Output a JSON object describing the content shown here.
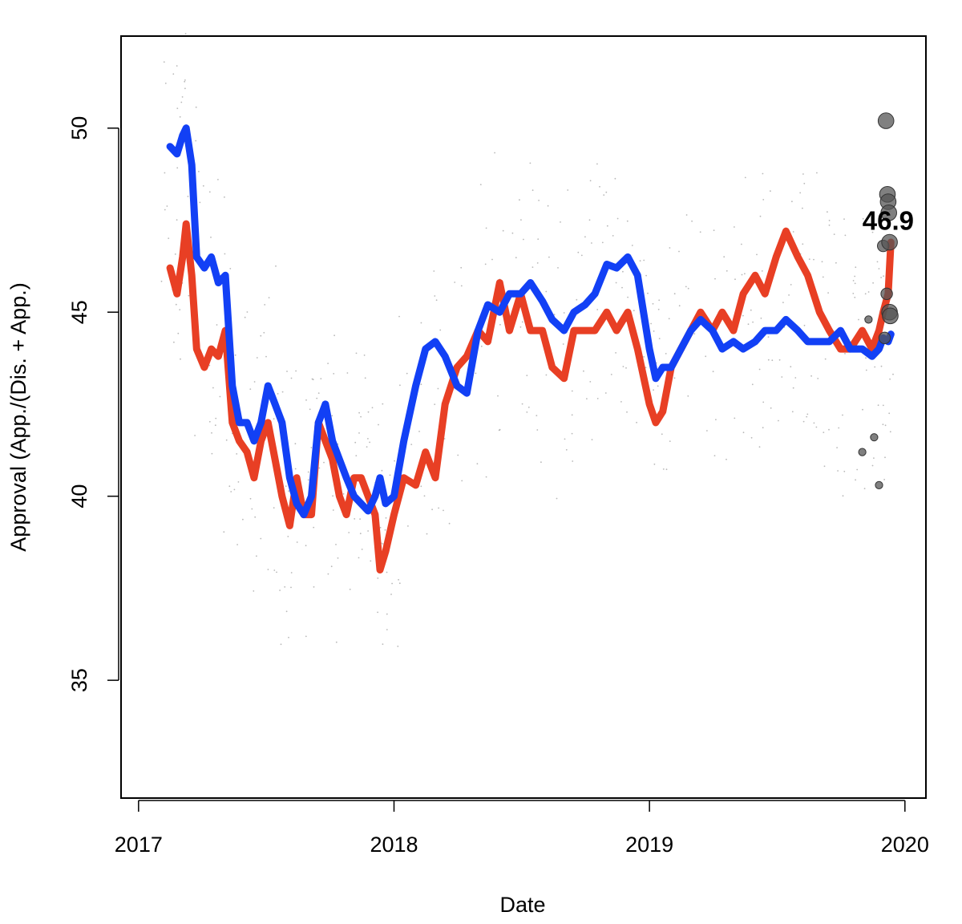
{
  "chart_data": {
    "type": "line",
    "title": "",
    "xlabel": "Date",
    "ylabel": "Approval (App./(Dis. + App.)",
    "x_ticks": [
      "2017",
      "2018",
      "2019",
      "2020"
    ],
    "y_ticks": [
      "35",
      "40",
      "45",
      "50"
    ],
    "xlim": [
      "2016-12-07",
      "2020-01-31"
    ],
    "ylim": [
      31.8,
      52.5
    ],
    "grid": false,
    "legend": "none",
    "annotation": {
      "text": "46.9",
      "x": "2019-12-08",
      "y": 47.5
    },
    "series": [
      {
        "color": "#e83f24",
        "x": [
          "2017-02-15",
          "2017-02-25",
          "2017-03-05",
          "2017-03-10",
          "2017-03-18",
          "2017-03-25",
          "2017-04-05",
          "2017-04-15",
          "2017-04-25",
          "2017-05-05",
          "2017-05-15",
          "2017-05-25",
          "2017-06-05",
          "2017-06-15",
          "2017-06-25",
          "2017-07-05",
          "2017-07-15",
          "2017-07-25",
          "2017-08-05",
          "2017-08-15",
          "2017-08-25",
          "2017-09-05",
          "2017-09-15",
          "2017-09-25",
          "2017-10-05",
          "2017-10-15",
          "2017-10-25",
          "2017-11-05",
          "2017-11-15",
          "2017-11-25",
          "2017-12-05",
          "2017-12-12",
          "2017-12-20",
          "2018-01-01",
          "2018-01-15",
          "2018-02-01",
          "2018-02-15",
          "2018-03-01",
          "2018-03-15",
          "2018-04-01",
          "2018-04-15",
          "2018-05-01",
          "2018-05-15",
          "2018-06-01",
          "2018-06-15",
          "2018-07-01",
          "2018-07-15",
          "2018-08-01",
          "2018-08-15",
          "2018-09-01",
          "2018-09-15",
          "2018-10-01",
          "2018-10-15",
          "2018-11-01",
          "2018-11-15",
          "2018-12-01",
          "2018-12-15",
          "2019-01-01",
          "2019-01-10",
          "2019-01-20",
          "2019-02-01",
          "2019-02-15",
          "2019-03-01",
          "2019-03-15",
          "2019-04-01",
          "2019-04-15",
          "2019-05-01",
          "2019-05-15",
          "2019-06-01",
          "2019-06-15",
          "2019-07-01",
          "2019-07-15",
          "2019-08-01",
          "2019-08-15",
          "2019-09-01",
          "2019-09-15",
          "2019-10-01",
          "2019-10-15",
          "2019-11-01",
          "2019-11-15",
          "2019-11-25",
          "2019-12-01",
          "2019-12-08",
          "2019-12-12"
        ],
        "values": [
          46.2,
          45.5,
          46.5,
          47.4,
          46.0,
          44.0,
          43.5,
          44.0,
          43.8,
          44.5,
          42.0,
          41.5,
          41.2,
          40.5,
          41.5,
          42.0,
          41.0,
          40.0,
          39.2,
          40.5,
          39.5,
          39.5,
          42.0,
          41.5,
          41.0,
          40.0,
          39.5,
          40.5,
          40.5,
          40.0,
          39.5,
          38.0,
          38.5,
          39.5,
          40.5,
          40.3,
          41.2,
          40.5,
          42.5,
          43.5,
          43.8,
          44.5,
          44.2,
          45.8,
          44.5,
          45.5,
          44.5,
          44.5,
          43.5,
          43.2,
          44.5,
          44.5,
          44.5,
          45.0,
          44.5,
          45.0,
          44.0,
          42.5,
          42.0,
          42.3,
          43.5,
          44.0,
          44.5,
          45.0,
          44.5,
          45.0,
          44.5,
          45.5,
          46.0,
          45.5,
          46.5,
          47.2,
          46.5,
          46.0,
          45.0,
          44.5,
          44.0,
          44.0,
          44.5,
          44.0,
          44.5,
          45.0,
          45.5,
          46.9
        ]
      },
      {
        "color": "#1240f5",
        "x": [
          "2017-02-15",
          "2017-02-25",
          "2017-03-05",
          "2017-03-10",
          "2017-03-18",
          "2017-03-25",
          "2017-04-05",
          "2017-04-15",
          "2017-04-25",
          "2017-05-05",
          "2017-05-15",
          "2017-05-25",
          "2017-06-05",
          "2017-06-15",
          "2017-06-25",
          "2017-07-05",
          "2017-07-15",
          "2017-07-25",
          "2017-08-05",
          "2017-08-15",
          "2017-08-25",
          "2017-09-05",
          "2017-09-15",
          "2017-09-25",
          "2017-10-05",
          "2017-10-15",
          "2017-10-25",
          "2017-11-05",
          "2017-11-15",
          "2017-11-25",
          "2017-12-05",
          "2017-12-12",
          "2017-12-20",
          "2018-01-01",
          "2018-01-15",
          "2018-02-01",
          "2018-02-15",
          "2018-03-01",
          "2018-03-15",
          "2018-04-01",
          "2018-04-15",
          "2018-05-01",
          "2018-05-15",
          "2018-06-01",
          "2018-06-15",
          "2018-07-01",
          "2018-07-15",
          "2018-08-01",
          "2018-08-15",
          "2018-09-01",
          "2018-09-15",
          "2018-10-01",
          "2018-10-15",
          "2018-11-01",
          "2018-11-15",
          "2018-12-01",
          "2018-12-15",
          "2019-01-01",
          "2019-01-10",
          "2019-01-20",
          "2019-02-01",
          "2019-02-15",
          "2019-03-01",
          "2019-03-15",
          "2019-04-01",
          "2019-04-15",
          "2019-05-01",
          "2019-05-15",
          "2019-06-01",
          "2019-06-15",
          "2019-07-01",
          "2019-07-15",
          "2019-08-01",
          "2019-08-15",
          "2019-09-01",
          "2019-09-15",
          "2019-10-01",
          "2019-10-15",
          "2019-11-01",
          "2019-11-15",
          "2019-11-25",
          "2019-12-01",
          "2019-12-08",
          "2019-12-12"
        ],
        "values": [
          49.5,
          49.3,
          49.8,
          50.0,
          49.0,
          46.5,
          46.2,
          46.5,
          45.8,
          46.0,
          43.0,
          42.0,
          42.0,
          41.5,
          42.0,
          43.0,
          42.5,
          42.0,
          40.5,
          39.8,
          39.5,
          40.0,
          42.0,
          42.5,
          41.5,
          41.0,
          40.5,
          40.0,
          39.8,
          39.6,
          40.0,
          40.5,
          39.8,
          40.0,
          41.5,
          43.0,
          44.0,
          44.2,
          43.8,
          43.0,
          42.8,
          44.5,
          45.2,
          45.0,
          45.5,
          45.5,
          45.8,
          45.3,
          44.8,
          44.5,
          45.0,
          45.2,
          45.5,
          46.3,
          46.2,
          46.5,
          46.0,
          44.0,
          43.2,
          43.5,
          43.5,
          44.0,
          44.5,
          44.8,
          44.5,
          44.0,
          44.2,
          44.0,
          44.2,
          44.5,
          44.5,
          44.8,
          44.5,
          44.2,
          44.2,
          44.2,
          44.5,
          44.0,
          44.0,
          43.8,
          44.0,
          44.3,
          44.2,
          44.4
        ]
      }
    ],
    "scatter_dots": {
      "color": "#555555",
      "x": [
        "2019-11-01",
        "2019-11-10",
        "2019-11-18",
        "2019-11-25",
        "2019-12-01",
        "2019-12-03",
        "2019-12-05",
        "2019-12-06",
        "2019-12-07",
        "2019-12-08",
        "2019-12-09",
        "2019-12-10",
        "2019-12-10",
        "2019-12-11"
      ],
      "values": [
        41.2,
        44.8,
        41.6,
        40.3,
        46.8,
        44.3,
        50.2,
        45.5,
        48.2,
        48.0,
        47.7,
        45.0,
        46.9,
        44.9
      ],
      "sizes": [
        1,
        1,
        1,
        1,
        2,
        2,
        3,
        2,
        3,
        3,
        3,
        3,
        3,
        3
      ]
    }
  }
}
